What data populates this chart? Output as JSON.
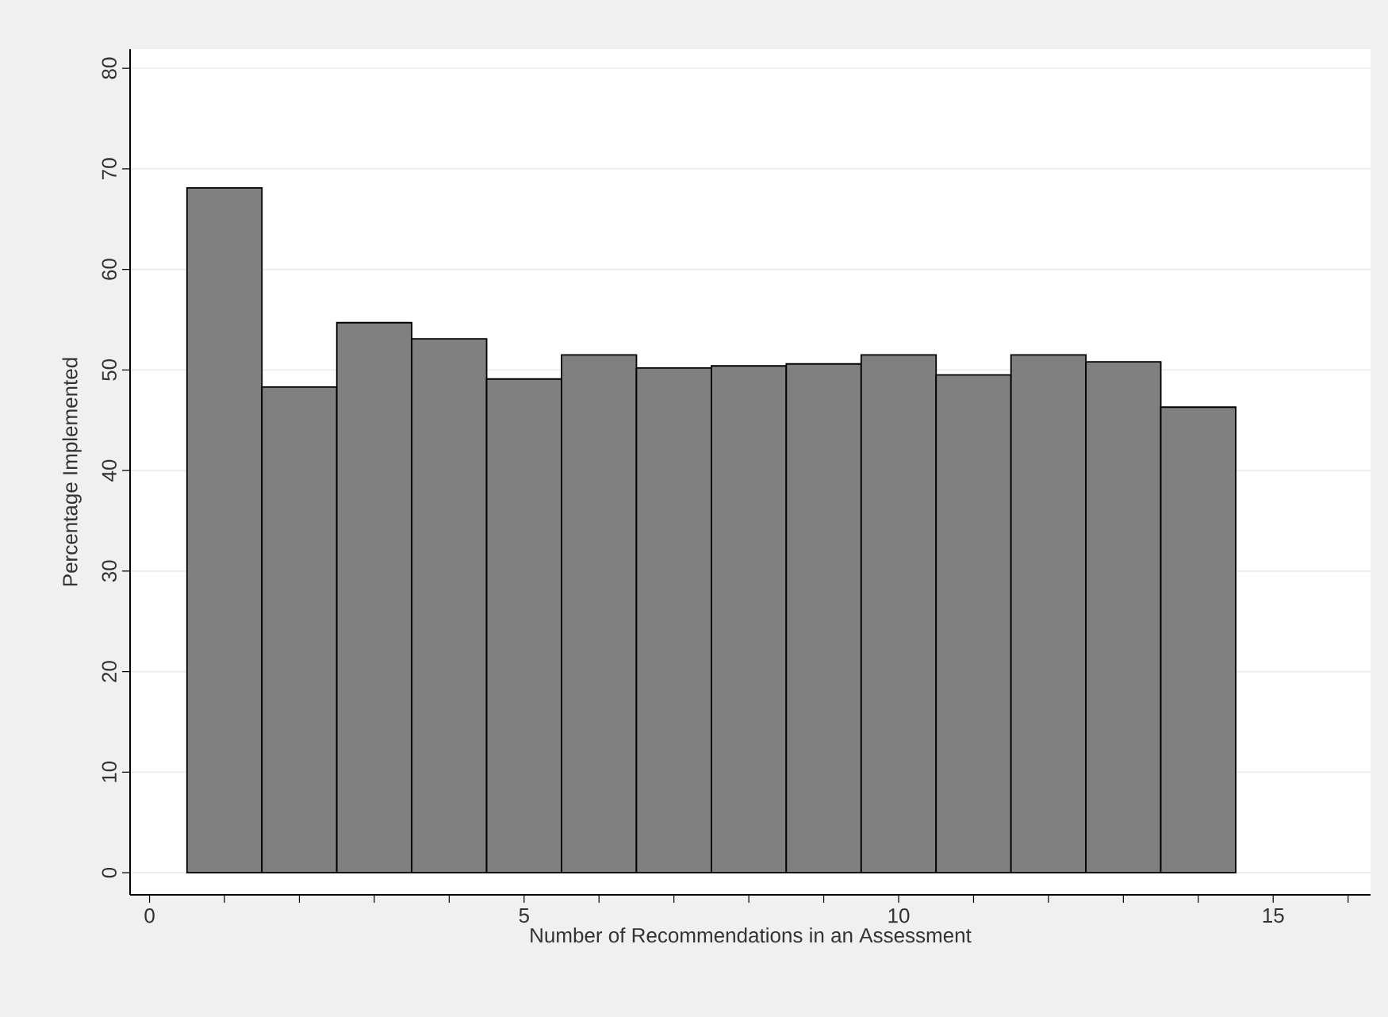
{
  "chart_data": {
    "type": "histogram",
    "xlabel": "Number of Recommendations in an Assessment",
    "ylabel": "Percentage Implemented",
    "bins": [
      0.5,
      1.5,
      2.5,
      3.5,
      4.5,
      5.5,
      6.5,
      7.5,
      8.5,
      9.5,
      10.5,
      11.5,
      12.5,
      13.5,
      14.5
    ],
    "values": [
      68.1,
      48.3,
      54.7,
      53.1,
      49.1,
      51.5,
      50.2,
      50.4,
      50.6,
      51.5,
      49.5,
      51.5,
      50.8,
      46.3
    ],
    "color": "#808080",
    "xlim": [
      -0.26,
      16.3
    ],
    "ylim": [
      -2.2,
      81.9
    ],
    "xticks": [
      0,
      {
        "value": 1,
        "label": null
      },
      {
        "value": 2,
        "label": null
      },
      {
        "value": 3,
        "label": null
      },
      {
        "value": 4,
        "label": null
      },
      5,
      {
        "value": 6,
        "label": null
      },
      {
        "value": 7,
        "label": null
      },
      {
        "value": 8,
        "label": null
      },
      {
        "value": 9,
        "label": null
      },
      10,
      {
        "value": 11,
        "label": null
      },
      {
        "value": 12,
        "label": null
      },
      {
        "value": 13,
        "label": null
      },
      {
        "value": 14,
        "label": null
      },
      15,
      {
        "value": 16,
        "label": null
      }
    ],
    "yticks": [
      0,
      10,
      20,
      30,
      40,
      50,
      60,
      70,
      80
    ],
    "grid": "y"
  }
}
